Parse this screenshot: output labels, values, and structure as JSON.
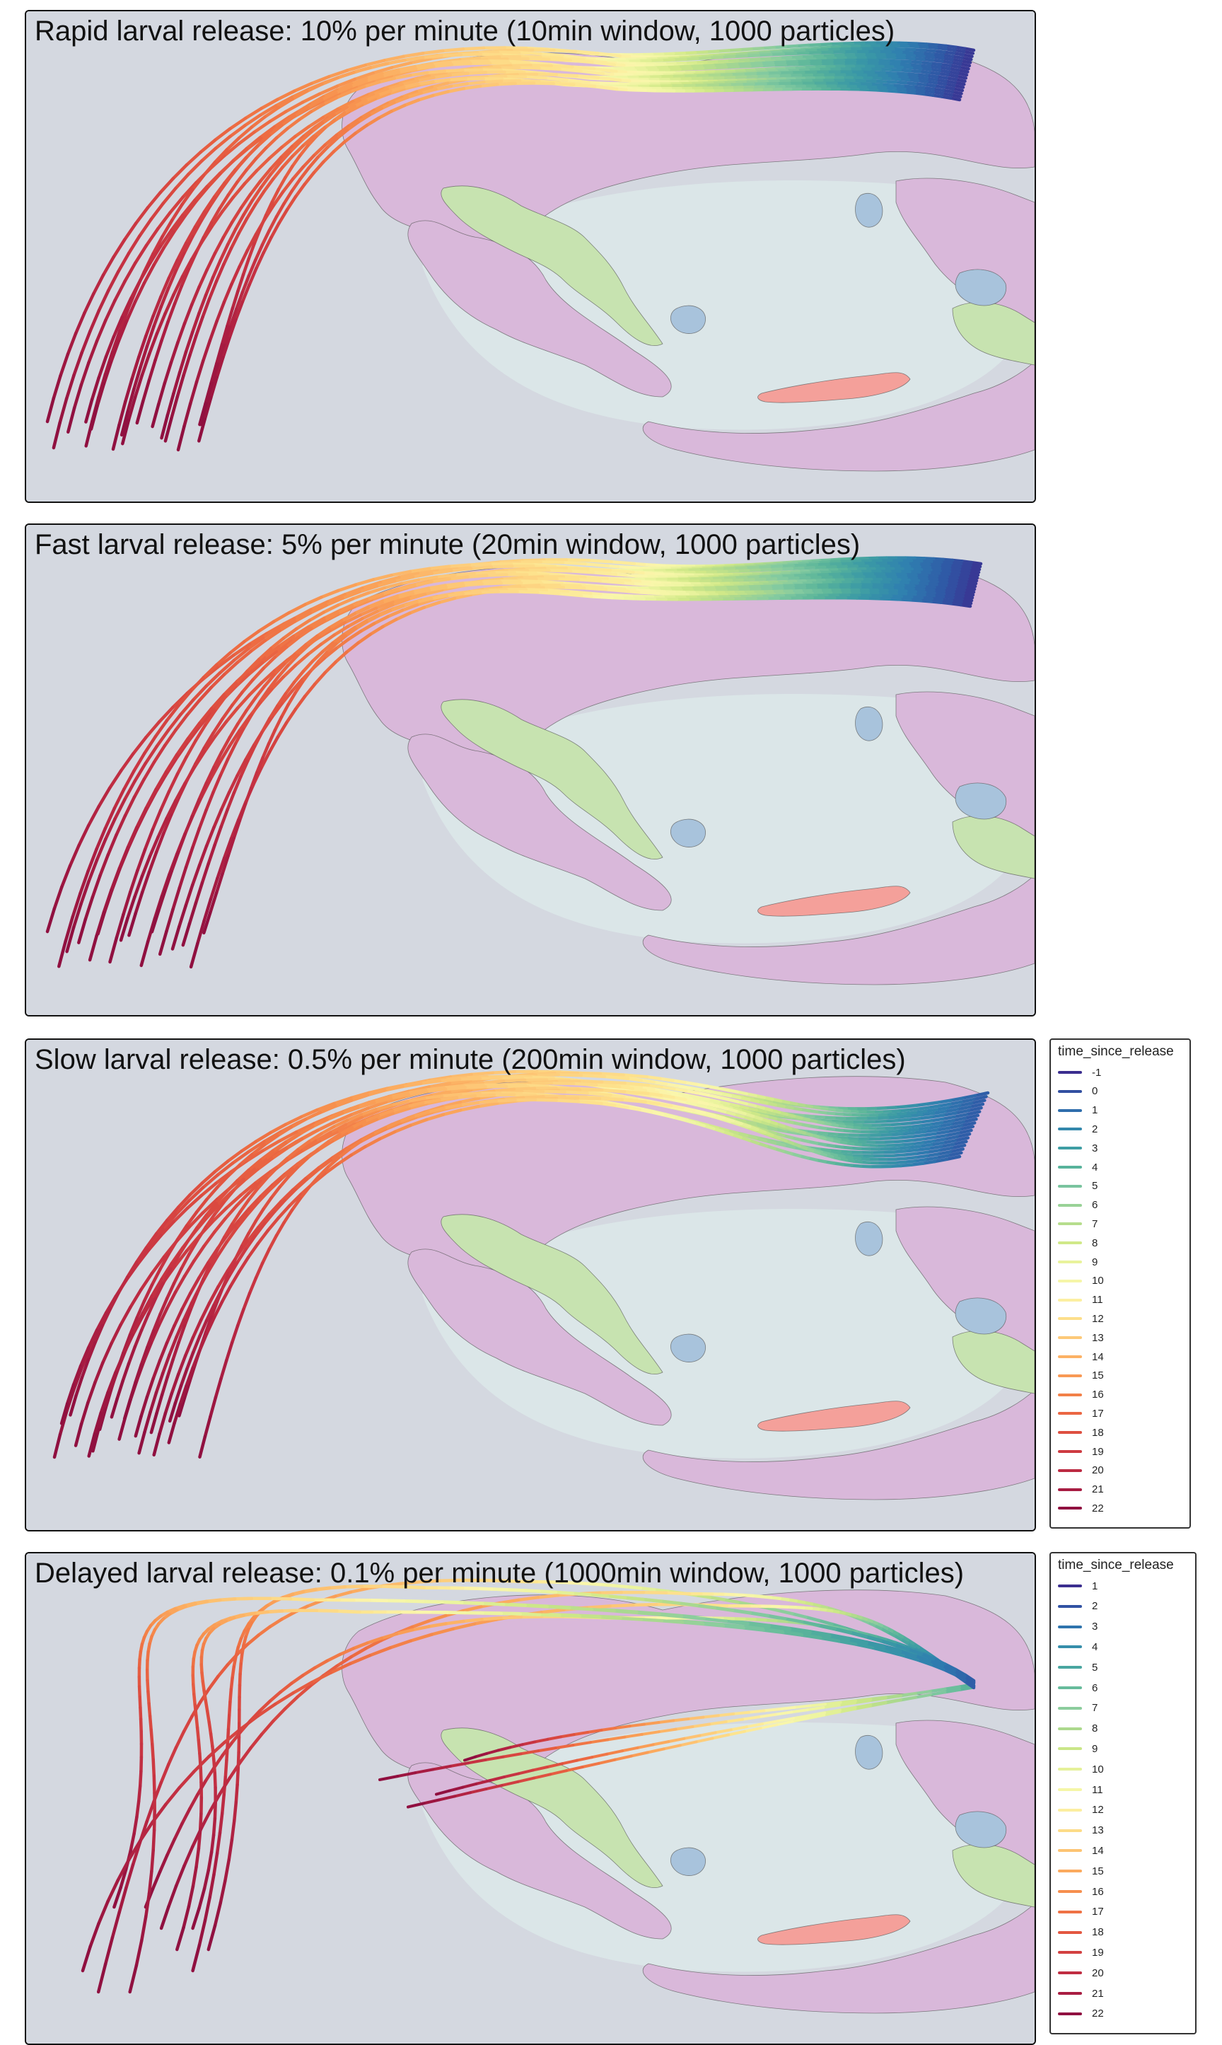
{
  "chart_data": [
    {
      "type": "line",
      "title": "Rapid larval release: 10% per minute (10min window, 1000 particles)",
      "color_scale": "Spectral (blue = early, red = late)",
      "trajectory_count": 17,
      "legend_shown": false
    },
    {
      "type": "line",
      "title": "Fast larval release: 5% per minute (20min window, 1000 particles)",
      "color_scale": "Spectral (blue = early, red = late)",
      "trajectory_count": 16,
      "legend_shown": false
    },
    {
      "type": "line",
      "title": "Slow larval release: 0.5% per minute (200min window, 1000 particles)",
      "color_scale": "Spectral (blue = early, red = late)",
      "trajectory_count": 18,
      "legend": {
        "title": "time_since_release",
        "placement": "right",
        "entries": [
          "-1",
          "0",
          "1",
          "2",
          "3",
          "4",
          "5",
          "6",
          "7",
          "8",
          "9",
          "10",
          "11",
          "12",
          "13",
          "14",
          "15",
          "16",
          "17",
          "18",
          "19",
          "20",
          "21",
          "22"
        ]
      }
    },
    {
      "type": "line",
      "title": "Delayed larval release: 0.1% per minute (1000min window, 1000 particles)",
      "color_scale": "Spectral (blue = early, red = late)",
      "trajectory_count": 14,
      "legend": {
        "title": "time_since_release",
        "placement": "right",
        "entries": [
          "1",
          "2",
          "3",
          "4",
          "5",
          "6",
          "7",
          "8",
          "9",
          "10",
          "11",
          "12",
          "13",
          "14",
          "15",
          "16",
          "17",
          "18",
          "19",
          "20",
          "21",
          "22"
        ]
      }
    }
  ],
  "colors": {
    "map_background": "#d4d8e0",
    "lagoon": "#dbe6e8",
    "habitat_purple": "#d9b8da",
    "habitat_green": "#c7e3b0",
    "habitat_blue": "#a8c3dc",
    "habitat_salmon": "#f4a09a",
    "spectral": [
      "#3b2e8f",
      "#2f58a6",
      "#2f7fb0",
      "#3b9aa5",
      "#5bb59a",
      "#86cba0",
      "#add98e",
      "#cfe887",
      "#eef5a1",
      "#fbf6ac",
      "#fde48f",
      "#fdc877",
      "#fbaa5e",
      "#f58a4b",
      "#ec6942",
      "#dc4b40",
      "#c73342",
      "#ad1f42",
      "#901040"
    ]
  }
}
